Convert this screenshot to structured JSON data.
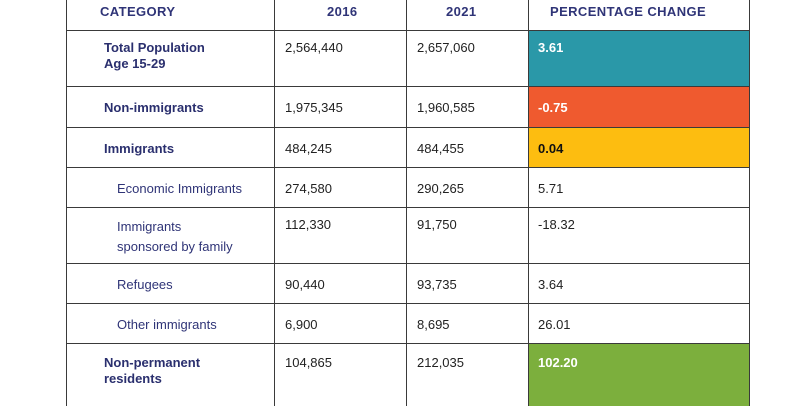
{
  "table": {
    "headers": [
      "CATEGORY",
      "2016",
      "2021",
      "PERCENTAGE CHANGE"
    ],
    "rows": [
      {
        "category_lines": [
          "Total Population",
          "Age 15-29"
        ],
        "y2016": "2,564,440",
        "y2021": "2,657,060",
        "change": "3.61",
        "highlight": "#2a98a8"
      },
      {
        "category_lines": [
          "Non-immigrants"
        ],
        "y2016": "1,975,345",
        "y2021": "1,960,585",
        "change": "-0.75",
        "highlight": "#ef5a2f"
      },
      {
        "category_lines": [
          "Immigrants"
        ],
        "y2016": "484,245",
        "y2021": "484,455",
        "change": "0.04",
        "highlight": "#fdbd10"
      },
      {
        "category_lines": [
          "Economic Immigrants"
        ],
        "y2016": "274,580",
        "y2021": "290,265",
        "change": "5.71",
        "highlight": ""
      },
      {
        "category_lines": [
          "Immigrants",
          "sponsored by family"
        ],
        "y2016": "112,330",
        "y2021": "91,750",
        "change": "-18.32",
        "highlight": ""
      },
      {
        "category_lines": [
          "Refugees"
        ],
        "y2016": "90,440",
        "y2021": "93,735",
        "change": "3.64",
        "highlight": ""
      },
      {
        "category_lines": [
          "Other immigrants"
        ],
        "y2016": "6,900",
        "y2021": "8,695",
        "change": "26.01",
        "highlight": ""
      },
      {
        "category_lines": [
          "Non-permanent",
          "residents"
        ],
        "y2016": "104,865",
        "y2021": "212,035",
        "change": "102.20",
        "highlight": "#7caf3d"
      }
    ]
  }
}
